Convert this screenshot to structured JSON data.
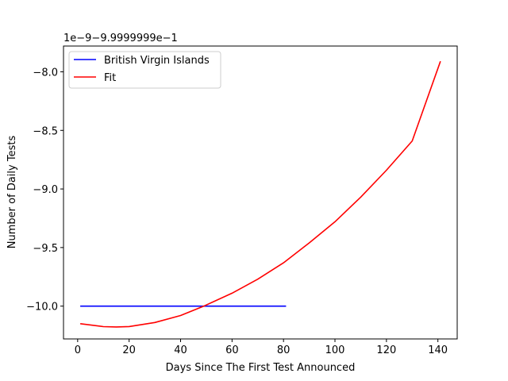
{
  "chart_data": {
    "type": "line",
    "xlabel": "Days Since The First Test Announced",
    "ylabel": "Number of Daily Tests",
    "offset_text": "1e−9−9.9999999e−1",
    "xlim": [
      -5.5,
      147.5
    ],
    "ylim": [
      -10.28,
      -7.78
    ],
    "xticks": [
      0,
      20,
      40,
      60,
      80,
      100,
      120,
      140
    ],
    "xtick_labels": [
      "0",
      "20",
      "40",
      "60",
      "80",
      "100",
      "120",
      "140"
    ],
    "yticks": [
      -10.0,
      -9.5,
      -9.0,
      -8.5,
      -8.0
    ],
    "ytick_labels": [
      "−10.0",
      "−9.5",
      "−9.0",
      "−8.5",
      "−8.0"
    ],
    "grid": false,
    "legend": "upper left",
    "series": [
      {
        "name": "British Virgin Islands",
        "color": "#0000ff",
        "x": [
          1,
          81
        ],
        "y": [
          -10.0,
          -10.0
        ]
      },
      {
        "name": "Fit",
        "color": "#ff0000",
        "x": [
          1,
          10,
          15,
          20,
          30,
          40,
          49,
          60,
          70,
          80,
          90,
          100,
          110,
          120,
          130,
          141
        ],
        "y": [
          -10.15,
          -10.175,
          -10.178,
          -10.174,
          -10.14,
          -10.08,
          -10.0,
          -9.89,
          -9.77,
          -9.63,
          -9.46,
          -9.28,
          -9.07,
          -8.84,
          -8.59,
          -7.91
        ]
      }
    ]
  }
}
